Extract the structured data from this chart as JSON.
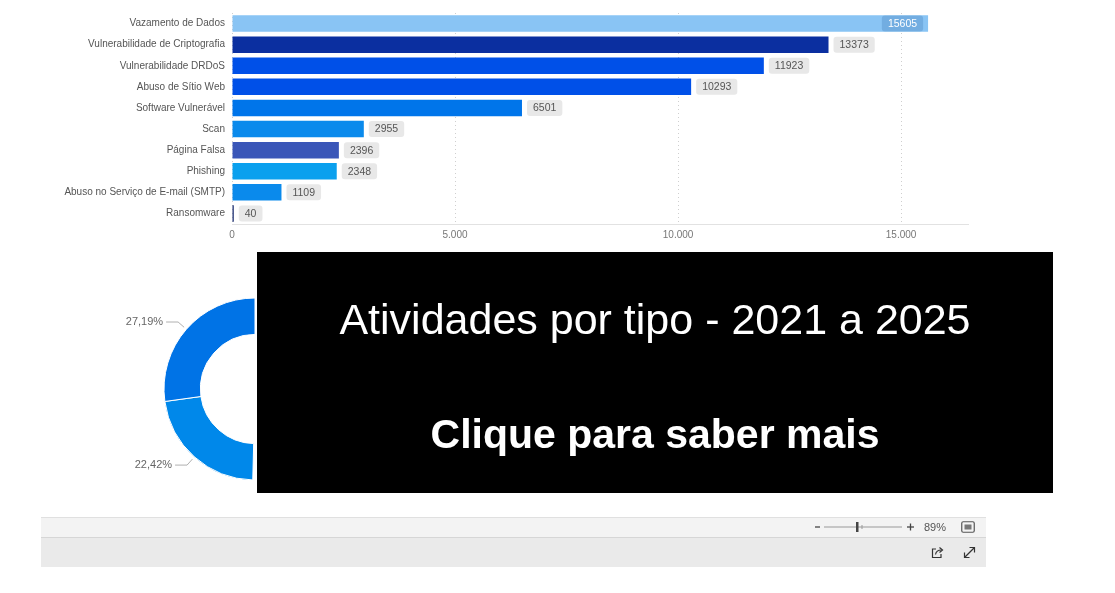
{
  "chart_data": [
    {
      "type": "bar",
      "orientation": "horizontal",
      "categories": [
        "Vazamento de Dados",
        "Vulnerabilidade de Criptografia",
        "Vulnerabilidade DRDoS",
        "Abuso de Sítio Web",
        "Software Vulnerável",
        "Scan",
        "Página Falsa",
        "Phishing",
        "Abuso no Serviço de E-mail (SMTP)",
        "Ransomware"
      ],
      "values": [
        15605,
        13373,
        11923,
        10293,
        6501,
        2955,
        2396,
        2348,
        1109,
        40
      ],
      "colors": [
        "#89c4f4",
        "#0b2fa0",
        "#0050e8",
        "#0050e8",
        "#0075ea",
        "#0a8aec",
        "#3a56b8",
        "#0aa0ee",
        "#0a8aec",
        "#1b2d70"
      ],
      "xlim": [
        0,
        16500
      ],
      "xticks": [
        0,
        {
          "value": 5000,
          "label": "5.000"
        },
        {
          "value": 10000,
          "label": "10.000"
        },
        {
          "value": 15000,
          "label": "15.000"
        }
      ],
      "grid": "x",
      "data_labels": true,
      "annotations": [
        "89%"
      ]
    },
    {
      "type": "donut",
      "categories": [
        null,
        null,
        null,
        null
      ],
      "values": [
        null,
        null,
        22.42,
        27.19
      ],
      "colors": [
        "#89c4f4",
        "#0aa0ee",
        "#0088ea",
        "#0073e6"
      ],
      "value_labels": [
        null,
        null,
        "22,42%",
        "27,19%"
      ]
    },
    {
      "type": "other",
      "title": "Atividades por tipo - 2021 a 2025",
      "subtitle": "Clique para saber mais"
    }
  ]
}
